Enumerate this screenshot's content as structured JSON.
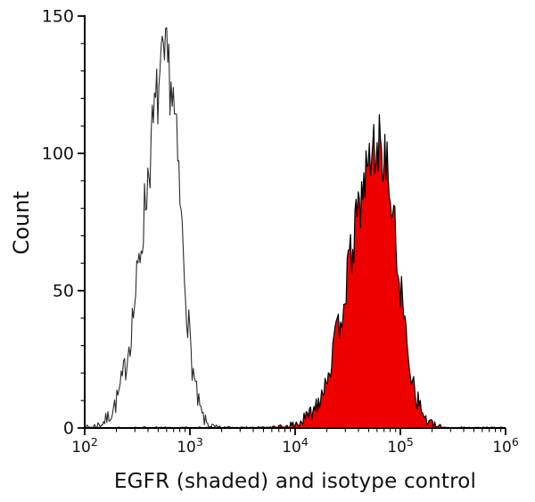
{
  "figure": {
    "xlabel": "EGFR (shaded) and isotype control",
    "ylabel": "Count",
    "background": "#ffffff"
  },
  "chart_data": {
    "type": "area",
    "subtype": "flow-cytometry-histogram",
    "title": "",
    "xlabel": "EGFR (shaded) and isotype control",
    "ylabel": "Count",
    "x_scale": "log10",
    "xlim": [
      100,
      1000000
    ],
    "ylim": [
      0,
      150
    ],
    "grid": false,
    "legend": "none",
    "axis_color": "#000000",
    "x_ticks": [
      {
        "base": "10",
        "exp": "2",
        "value": 100
      },
      {
        "base": "10",
        "exp": "3",
        "value": 1000
      },
      {
        "base": "10",
        "exp": "4",
        "value": 10000
      },
      {
        "base": "10",
        "exp": "5",
        "value": 100000
      },
      {
        "base": "10",
        "exp": "6",
        "value": 1000000
      }
    ],
    "x_minor_multiples": [
      2,
      3,
      4,
      5,
      6,
      7,
      8,
      9
    ],
    "y_ticks": [
      0,
      50,
      100,
      150
    ],
    "y_minor_step": 10,
    "series": [
      {
        "name": "isotype control",
        "style": "open",
        "stroke": "#2b2b2b",
        "fill": "none",
        "approx_peak_x": 600,
        "approx_peak_count": 145,
        "center_log10": 2.78,
        "sigma_left": 0.21,
        "sigma_right": 0.13,
        "height": 132,
        "noise_amp": 1.25,
        "baseline_noise": 0.4,
        "seed": 7
      },
      {
        "name": "EGFR",
        "style": "shaded",
        "stroke": "#000000",
        "fill": "#ee0000",
        "approx_peak_x": 60000,
        "approx_peak_count": 120,
        "center_log10": 4.8,
        "sigma_left": 0.27,
        "sigma_right": 0.17,
        "height": 103,
        "noise_amp": 1.15,
        "baseline_noise": 0.4,
        "seed": 13
      }
    ]
  }
}
